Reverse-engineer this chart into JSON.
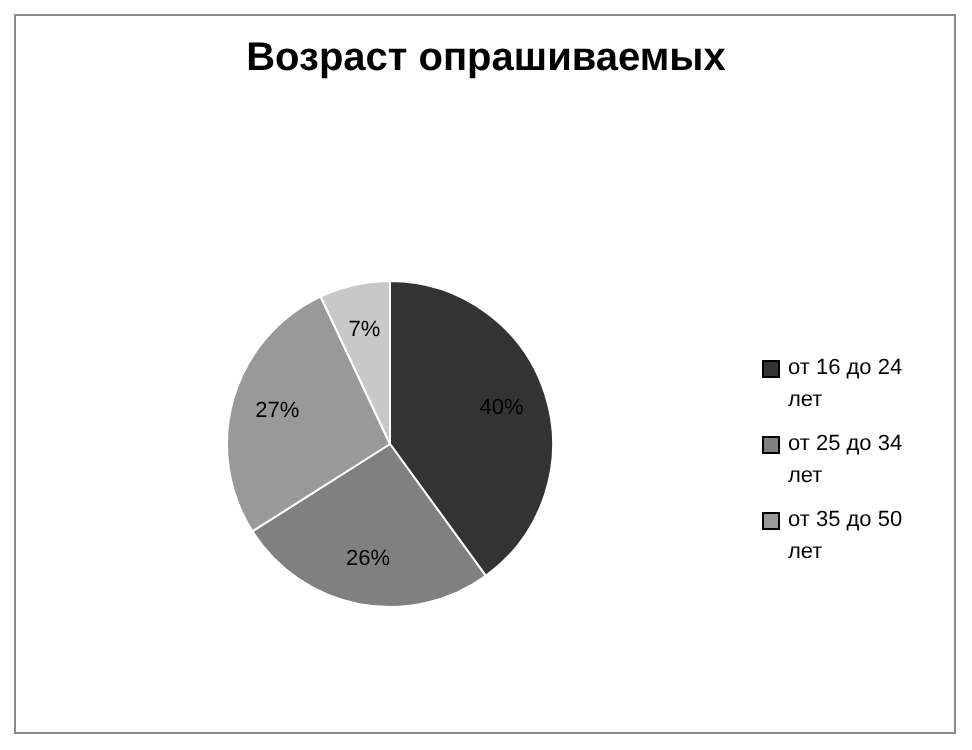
{
  "chart_data": {
    "type": "pie",
    "title": "Возраст опрашиваемых",
    "categories": [
      "от 16 до 24 лет",
      "от 25 до 34 лет",
      "от 35 до 50 лет",
      null
    ],
    "values": [
      40,
      26,
      27,
      7
    ],
    "value_labels": [
      "40%",
      "26%",
      "27%",
      "7%"
    ],
    "colors": [
      "#333333",
      "#808080",
      "#999999",
      "#c8c8c8"
    ],
    "legend": "right"
  }
}
